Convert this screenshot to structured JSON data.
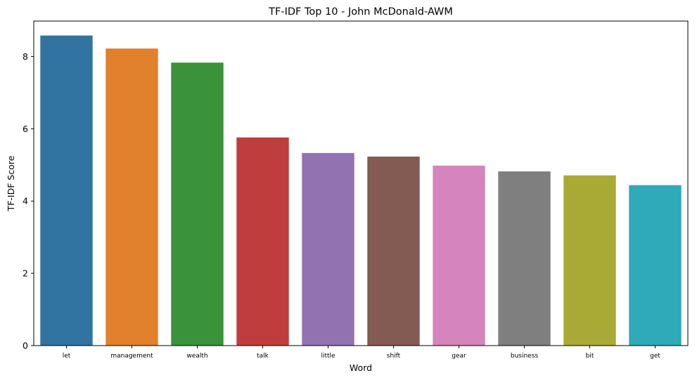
{
  "chart_data": {
    "type": "bar",
    "title": "TF-IDF Top 10 - John McDonald-AWM",
    "xlabel": "Word",
    "ylabel": "TF-IDF Score",
    "categories": [
      "let",
      "management",
      "wealth",
      "talk",
      "little",
      "shift",
      "gear",
      "business",
      "bit",
      "get"
    ],
    "values": [
      8.58,
      8.22,
      7.83,
      5.76,
      5.33,
      5.23,
      4.98,
      4.82,
      4.71,
      4.44
    ],
    "colors": [
      "#3274a1",
      "#e1812c",
      "#3a923a",
      "#c03d3e",
      "#9372b2",
      "#845b53",
      "#d684bd",
      "#7f7f7f",
      "#a9aa35",
      "#2eaab8"
    ],
    "ylim": [
      0,
      8.98
    ],
    "yticks": [
      0,
      2,
      4,
      6,
      8
    ],
    "grid": false,
    "legend": "none"
  }
}
